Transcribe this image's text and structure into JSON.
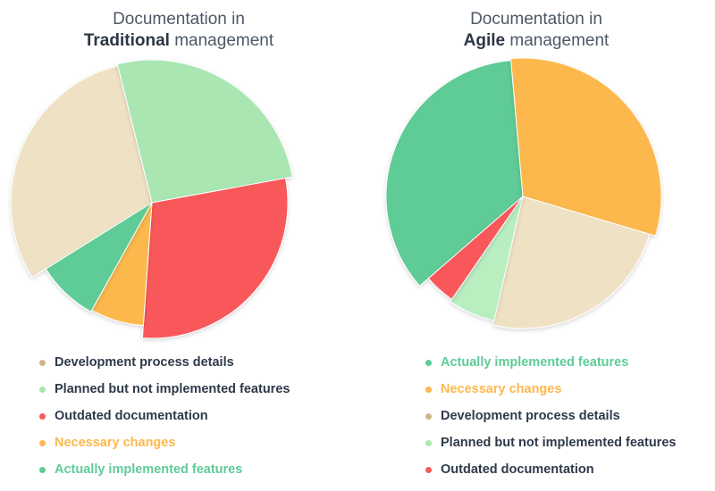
{
  "charts": {
    "traditional": {
      "title_line1": "Documentation in",
      "title_bold": "Traditional",
      "title_rest": "management"
    },
    "agile": {
      "title_line1": "Documentation in",
      "title_bold": "Agile",
      "title_rest": "management"
    }
  },
  "chart_data": [
    {
      "type": "pie",
      "title": "Documentation in Traditional management",
      "slices": [
        {
          "label": "Development process details",
          "value": 30,
          "color": "#efe2c4"
        },
        {
          "label": "Planned but not implemented features",
          "value": 26,
          "color": "#a9e6b2"
        },
        {
          "label": "Outdated documentation",
          "value": 29,
          "color": "#f9585a"
        },
        {
          "label": "Necessary changes",
          "value": 7,
          "color": "#fdb84d"
        },
        {
          "label": "Actually implemented features",
          "value": 8,
          "color": "#5fcb96"
        }
      ],
      "legend_text_colors": [
        "#2e3a4a",
        "#2e3a4a",
        "#2e3a4a",
        "#fdb84d",
        "#5fcb96"
      ],
      "legend_dot_colors": [
        "#cfb68a",
        "#a9e6b2",
        "#f9585a",
        "#fdb84d",
        "#5fcb96"
      ]
    },
    {
      "type": "pie",
      "title": "Documentation in Agile management",
      "slices": [
        {
          "label": "Actually implemented features",
          "value": 35,
          "color": "#5fcb96"
        },
        {
          "label": "Necessary changes",
          "value": 31,
          "color": "#fdb84d"
        },
        {
          "label": "Development process details",
          "value": 24,
          "color": "#efe2c4"
        },
        {
          "label": "Planned but not implemented features",
          "value": 6,
          "color": "#b9eec1"
        },
        {
          "label": "Outdated documentation",
          "value": 4,
          "color": "#f9585a"
        }
      ],
      "legend_text_colors": [
        "#5fcb96",
        "#fdb84d",
        "#2e3a4a",
        "#2e3a4a",
        "#2e3a4a"
      ],
      "legend_dot_colors": [
        "#5fcb96",
        "#fdb84d",
        "#cfb68a",
        "#a9e6b2",
        "#f9585a"
      ]
    }
  ]
}
